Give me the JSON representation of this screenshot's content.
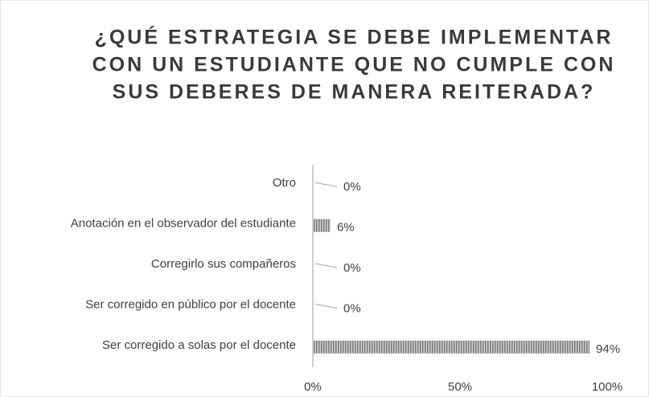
{
  "chart_data": {
    "type": "barh",
    "title": [
      "¿QUÉ ESTRATEGIA SE DEBE IMPLEMENTAR",
      "CON UN ESTUDIANTE QUE NO CUMPLE CON",
      "SUS DEBERES DE MANERA REITERADA?"
    ],
    "categories": [
      "Otro",
      "Anotación en el observador del estudiante",
      "Corregirlo sus compañeros",
      "Ser corregido en público por el docente",
      "Ser corregido a solas por el docente"
    ],
    "values": [
      0,
      6,
      0,
      0,
      94
    ],
    "value_labels": [
      "0%",
      "6%",
      "0%",
      "0%",
      "94%"
    ],
    "color": "#8c8c8c",
    "xlim": [
      0,
      100
    ],
    "xticks": [
      {
        "value": 0,
        "label": "0%"
      },
      {
        "value": 50,
        "label": "50%"
      },
      {
        "value": 100,
        "label": "100%"
      }
    ]
  }
}
